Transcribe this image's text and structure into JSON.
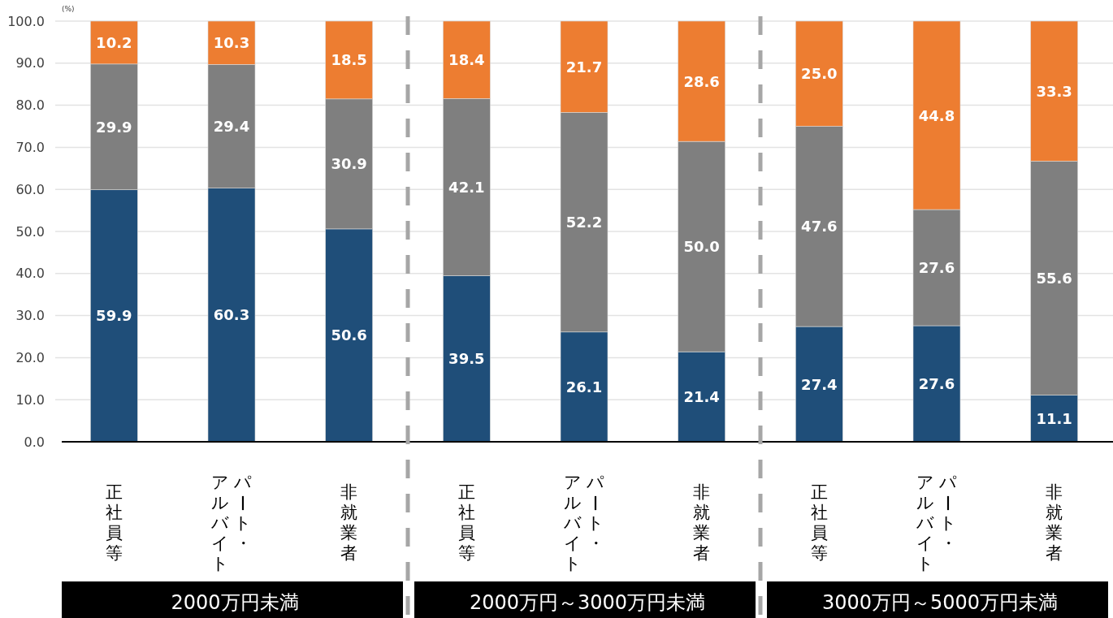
{
  "chart_data": [
    {
      "type": "bar",
      "stacked": true,
      "categories": [
        "正社員等",
        "パート・アルバイト",
        "非就業者"
      ],
      "xlabel": "2000万円未満",
      "ylabel": "(%)",
      "ylim": [
        0,
        100
      ],
      "yticks": [
        {
          "value": 0,
          "label": "0.0"
        },
        {
          "value": 10,
          "label": "10.0"
        },
        {
          "value": 20,
          "label": "20.0"
        },
        {
          "value": 30,
          "label": "30.0"
        },
        {
          "value": 40,
          "label": "40.0"
        },
        {
          "value": 50,
          "label": "50.0"
        },
        {
          "value": 60,
          "label": "60.0"
        },
        {
          "value": 70,
          "label": "70.0"
        },
        {
          "value": 80,
          "label": "80.0"
        },
        {
          "value": 90,
          "label": "90.0"
        },
        {
          "value": 100,
          "label": "100.0"
        }
      ],
      "grid": "y",
      "series": [
        {
          "color": "#1f4e79",
          "values": [
            59.9,
            60.3,
            50.6
          ],
          "value_labels": [
            "59.9",
            "60.3",
            "50.6"
          ]
        },
        {
          "color": "#7f7f7f",
          "values": [
            29.9,
            29.4,
            30.9
          ],
          "value_labels": [
            "29.9",
            "29.4",
            "30.9"
          ]
        },
        {
          "color": "#ed7d31",
          "values": [
            10.2,
            10.3,
            18.5
          ],
          "value_labels": [
            "10.2",
            "10.3",
            "18.5"
          ]
        }
      ]
    },
    {
      "type": "bar",
      "stacked": true,
      "categories": [
        "正社員等",
        "パート・アルバイト",
        "非就業者"
      ],
      "xlabel": "2000万円～3000万円未満",
      "ylim": [
        0,
        100
      ],
      "yticks": [
        0,
        10,
        20,
        30,
        40,
        50,
        60,
        70,
        80,
        90,
        100
      ],
      "grid": "y",
      "tick_labels": "x",
      "series": [
        {
          "color": "#1f4e79",
          "values": [
            39.5,
            26.1,
            21.4
          ],
          "value_labels": [
            "39.5",
            "26.1",
            "21.4"
          ]
        },
        {
          "color": "#7f7f7f",
          "values": [
            42.1,
            52.2,
            50.0
          ],
          "value_labels": [
            "42.1",
            "52.2",
            "50.0"
          ]
        },
        {
          "color": "#ed7d31",
          "values": [
            18.4,
            21.7,
            28.6
          ],
          "value_labels": [
            "18.4",
            "21.7",
            "28.6"
          ]
        }
      ]
    },
    {
      "type": "bar",
      "stacked": true,
      "categories": [
        "正社員等",
        "パート・アルバイト",
        "非就業者"
      ],
      "xlabel": "3000万円～5000万円未満",
      "ylim": [
        0,
        100
      ],
      "yticks": [
        0,
        10,
        20,
        30,
        40,
        50,
        60,
        70,
        80,
        90,
        100
      ],
      "grid": "y",
      "tick_labels": "x",
      "series": [
        {
          "color": "#1f4e79",
          "values": [
            27.4,
            27.6,
            11.1
          ],
          "value_labels": [
            "27.4",
            "27.6",
            "11.1"
          ]
        },
        {
          "color": "#7f7f7f",
          "values": [
            47.6,
            27.6,
            55.6
          ],
          "value_labels": [
            "47.6",
            "27.6",
            "55.6"
          ]
        },
        {
          "color": "#ed7d31",
          "values": [
            25.0,
            44.8,
            33.3
          ],
          "value_labels": [
            "25.0",
            "44.8",
            "33.3"
          ]
        }
      ]
    }
  ]
}
